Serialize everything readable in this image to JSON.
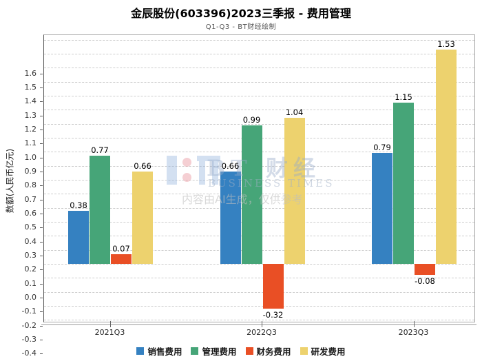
{
  "chart_data": {
    "type": "bar",
    "title": "金辰股份(603396)2023三季报 - 费用管理",
    "subtitle": "Q1-Q3 - BT财经绘制",
    "ylabel": "数额(人民币亿元)",
    "xlabel": "",
    "categories": [
      "2021Q3",
      "2022Q3",
      "2023Q3"
    ],
    "series": [
      {
        "name": "销售费用",
        "color": "#3581c1",
        "values": [
          0.38,
          0.66,
          0.79
        ]
      },
      {
        "name": "管理费用",
        "color": "#46a578",
        "values": [
          0.77,
          0.99,
          1.15
        ]
      },
      {
        "name": "财务费用",
        "color": "#e94f25",
        "values": [
          0.07,
          -0.32,
          -0.08
        ]
      },
      {
        "name": "研发费用",
        "color": "#edd26e",
        "values": [
          0.66,
          1.04,
          1.53
        ]
      }
    ],
    "ylim": [
      -0.4,
      1.6
    ],
    "ytick_step": 0.1,
    "grid": true,
    "grid_style": "dashed",
    "legend_position": "bottom",
    "value_labels": true
  },
  "watermark": {
    "brand": "BT 财经",
    "brand_en": "BUSINESS TIMES",
    "note": "内容由AI生成，仅供参考"
  }
}
